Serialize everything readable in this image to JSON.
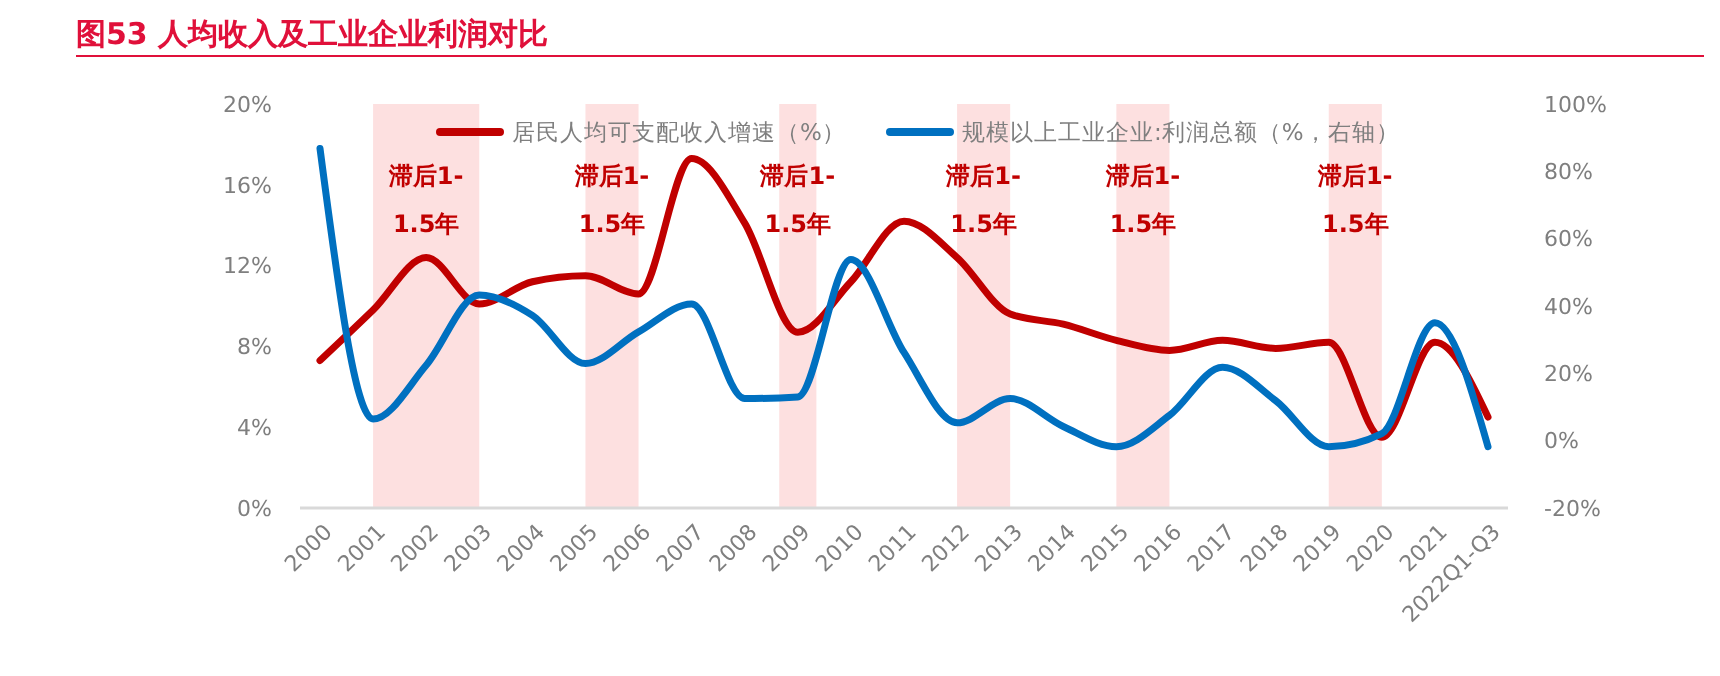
{
  "chart_data": {
    "type": "line",
    "title": "图53  人均收入及工业企业利润对比",
    "categories": [
      "2000",
      "2001",
      "2002",
      "2003",
      "2004",
      "2005",
      "2006",
      "2007",
      "2008",
      "2009",
      "2010",
      "2011",
      "2012",
      "2013",
      "2014",
      "2015",
      "2016",
      "2017",
      "2018",
      "2019",
      "2020",
      "2021",
      "2022Q1-Q3"
    ],
    "series": [
      {
        "name": "居民人均可支配收入增速（%）",
        "color": "#c00000",
        "values": [
          7.3,
          9.8,
          12.4,
          10.1,
          11.2,
          11.5,
          10.6,
          17.3,
          14.1,
          8.7,
          11.2,
          14.2,
          12.4,
          9.6,
          9.1,
          8.3,
          7.8,
          8.3,
          7.9,
          8.2,
          3.5,
          8.2,
          4.5
        ]
      },
      {
        "name": "规模以上工业企业:利润总额（%，右轴）",
        "color": "#0070c0",
        "axis": "y2",
        "values": [
          86.8,
          6.4,
          22.4,
          43.3,
          37.2,
          22.9,
          32.3,
          40.6,
          12.5,
          13.0,
          53.8,
          26.2,
          5.3,
          12.5,
          4.2,
          -1.8,
          7.5,
          21.8,
          11.9,
          -1.8,
          2.1,
          35.0,
          -1.8
        ]
      }
    ],
    "ylim": [
      0,
      20
    ],
    "yticks": [
      {
        "value": 0,
        "label": "0%"
      },
      {
        "value": 4,
        "label": "4%"
      },
      {
        "value": 8,
        "label": "8%"
      },
      {
        "value": 12,
        "label": "12%"
      },
      {
        "value": 16,
        "label": "16%"
      },
      {
        "value": 20,
        "label": "20%"
      }
    ],
    "y2lim": [
      -20,
      100
    ],
    "y2ticks": [
      {
        "value": -20,
        "label": "-20%"
      },
      {
        "value": 0,
        "label": "0%"
      },
      {
        "value": 20,
        "label": "20%"
      },
      {
        "value": 40,
        "label": "40%"
      },
      {
        "value": 60,
        "label": "60%"
      },
      {
        "value": 80,
        "label": "80%"
      },
      {
        "value": 100,
        "label": "100%"
      }
    ],
    "bands": [
      {
        "axis": "x",
        "from": "2001",
        "to": "2003",
        "label": "滞后1-1.5年",
        "color": "#fde0e0"
      },
      {
        "axis": "x",
        "from": "2005",
        "to": "2006",
        "label": "滞后1-1.5年",
        "color": "#fde0e0"
      },
      {
        "axis": "x",
        "from": "2009",
        "to": "2009",
        "label": "滞后1-1.5年",
        "color": "#fde0e0"
      },
      {
        "axis": "x",
        "from": "2012",
        "to": "2013",
        "label": "滞后1-1.5年",
        "color": "#fde0e0"
      },
      {
        "axis": "x",
        "from": "2015",
        "to": "2016",
        "label": "滞后1-1.5年",
        "color": "#fde0e0"
      },
      {
        "axis": "x",
        "from": "2019",
        "to": "2020",
        "label": "滞后1-1.5年",
        "color": "#fde0e0"
      }
    ],
    "legend": "top",
    "grid": false,
    "line_style": "solid",
    "marker": "none"
  }
}
